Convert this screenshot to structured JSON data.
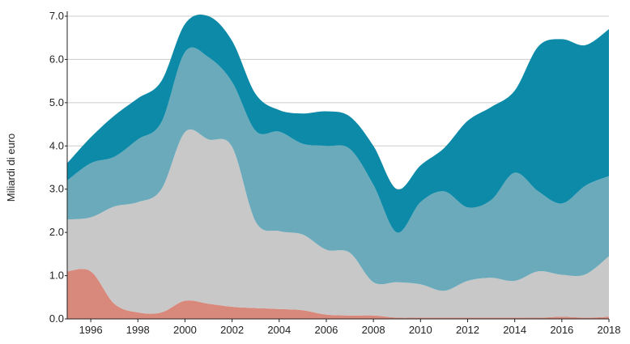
{
  "chart_data": {
    "type": "area",
    "stacked": true,
    "title": "",
    "xlabel": "",
    "ylabel": "Miliardi di euro",
    "x": [
      1995,
      1996,
      1997,
      1998,
      1999,
      2000,
      2001,
      2002,
      2003,
      2004,
      2005,
      2006,
      2007,
      2008,
      2009,
      2010,
      2011,
      2012,
      2013,
      2014,
      2015,
      2016,
      2017,
      2018
    ],
    "x_ticks": [
      "1996",
      "1998",
      "2000",
      "2002",
      "2004",
      "2006",
      "2008",
      "2010",
      "2012",
      "2014",
      "2016",
      "2018"
    ],
    "y_ticks": [
      "0.0",
      "1.0",
      "2.0",
      "3.0",
      "4.0",
      "5.0",
      "6.0",
      "7.0"
    ],
    "xlim": [
      1995,
      2018
    ],
    "ylim": [
      0,
      7.0
    ],
    "grid": "horizontal",
    "legend": "none",
    "series": [
      {
        "color": "#d9897c",
        "values": [
          1.1,
          1.1,
          0.35,
          0.15,
          0.15,
          0.42,
          0.35,
          0.28,
          0.25,
          0.23,
          0.2,
          0.1,
          0.08,
          0.08,
          0.03,
          0.03,
          0.03,
          0.03,
          0.03,
          0.03,
          0.03,
          0.05,
          0.03,
          0.05
        ]
      },
      {
        "color": "#c8c8c8",
        "values": [
          1.2,
          1.25,
          2.25,
          2.55,
          2.85,
          3.9,
          3.8,
          3.7,
          2.0,
          1.8,
          1.75,
          1.5,
          1.45,
          0.77,
          0.82,
          0.77,
          0.62,
          0.85,
          0.92,
          0.85,
          1.07,
          0.97,
          1.0,
          1.4
        ]
      },
      {
        "color": "#6aaabb",
        "values": [
          0.9,
          1.25,
          1.15,
          1.45,
          1.55,
          1.85,
          1.9,
          1.5,
          2.1,
          2.3,
          2.1,
          2.4,
          2.4,
          2.25,
          1.15,
          1.9,
          2.3,
          1.7,
          1.8,
          2.5,
          1.85,
          1.65,
          2.05,
          1.85
        ]
      },
      {
        "color": "#0c8aa8",
        "values": [
          0.4,
          0.6,
          0.95,
          0.95,
          0.95,
          0.65,
          0.95,
          0.95,
          0.85,
          0.5,
          0.7,
          0.8,
          0.75,
          0.9,
          1.0,
          0.85,
          1.0,
          2.0,
          2.15,
          1.9,
          3.35,
          3.8,
          3.25,
          3.4
        ]
      }
    ]
  }
}
